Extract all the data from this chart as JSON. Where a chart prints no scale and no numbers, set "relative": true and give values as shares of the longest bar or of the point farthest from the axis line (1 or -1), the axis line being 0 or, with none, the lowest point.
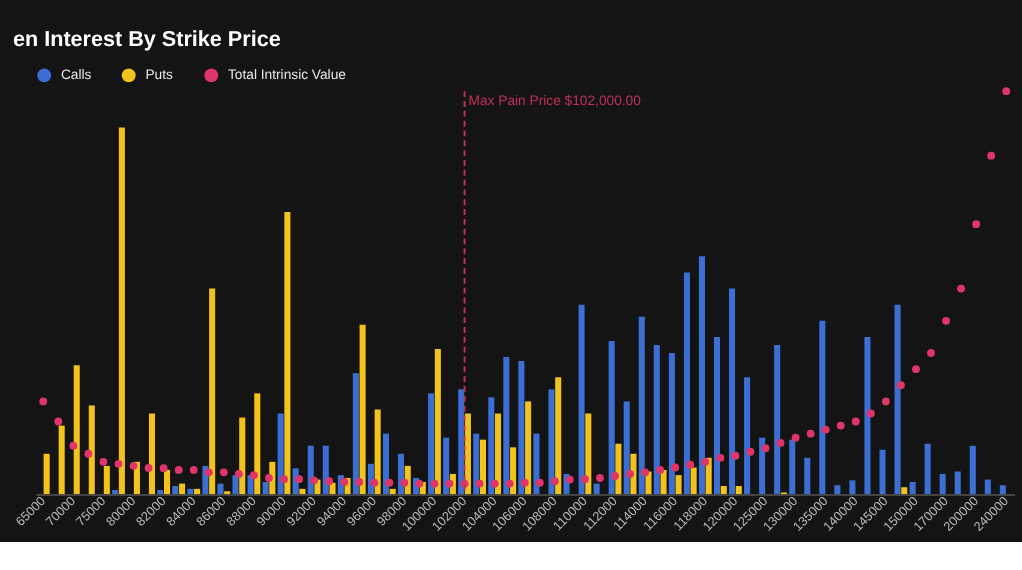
{
  "chart_data": {
    "type": "bar",
    "title": "en Interest By Strike Price",
    "relative": true,
    "categories": [
      "65000",
      null,
      "70000",
      null,
      "75000",
      null,
      "80000",
      null,
      "82000",
      null,
      "84000",
      null,
      "86000",
      null,
      "88000",
      null,
      "90000",
      null,
      "92000",
      null,
      "94000",
      null,
      "96000",
      null,
      "98000",
      null,
      "100000",
      null,
      "102000",
      null,
      "104000",
      null,
      "106000",
      null,
      "108000",
      null,
      "110000",
      null,
      "112000",
      null,
      "114000",
      null,
      "116000",
      null,
      "118000",
      null,
      "120000",
      null,
      "125000",
      null,
      "130000",
      null,
      "135000",
      null,
      "140000",
      null,
      "145000",
      null,
      "150000",
      null,
      "170000",
      null,
      "200000",
      null,
      "240000"
    ],
    "series": [
      {
        "name": "Calls",
        "color": "#3b6fd4",
        "values": [
          0,
          0,
          0,
          0,
          0,
          0.01,
          0,
          0,
          0.01,
          0.02,
          0.013,
          0.07,
          0.026,
          0.047,
          0.047,
          0.03,
          0.2,
          0.064,
          0.12,
          0.12,
          0.047,
          0.3,
          0.075,
          0.15,
          0.1,
          0.04,
          0.25,
          0.14,
          0.26,
          0.15,
          0.24,
          0.34,
          0.33,
          0.15,
          0.26,
          0.05,
          0.47,
          0.026,
          0.38,
          0.23,
          0.44,
          0.37,
          0.35,
          0.55,
          0.59,
          0.39,
          0.51,
          0.29,
          0.14,
          0.37,
          0.135,
          0.09,
          0.43,
          0.022,
          0.034,
          0.39,
          0.11,
          0.47,
          0.03,
          0.125,
          0.05,
          0.056,
          0.12,
          0.036,
          0.022
        ]
      },
      {
        "name": "Puts",
        "color": "#f2c31b",
        "values": [
          0.1,
          0.17,
          0.32,
          0.22,
          0.07,
          0.91,
          0.08,
          0.2,
          0.06,
          0.026,
          0.013,
          0.51,
          0.007,
          0.19,
          0.25,
          0.08,
          0.7,
          0.013,
          0.036,
          0.028,
          0.04,
          0.42,
          0.21,
          0.013,
          0.07,
          0.03,
          0.36,
          0.05,
          0.2,
          0.135,
          0.2,
          0.116,
          0.23,
          0,
          0.29,
          0,
          0.2,
          0,
          0.125,
          0.1,
          0.056,
          0.06,
          0.047,
          0.066,
          0.09,
          0.02,
          0.02,
          0,
          0,
          0.004,
          0,
          0,
          0,
          0,
          0,
          0,
          0,
          0.017,
          0,
          0,
          0,
          0,
          0,
          0,
          0
        ]
      },
      {
        "name": "Total Intrinsic Value",
        "type": "scatter",
        "color": "#e0356a",
        "values": [
          0.23,
          0.18,
          0.12,
          0.1,
          0.08,
          0.075,
          0.07,
          0.065,
          0.064,
          0.06,
          0.06,
          0.054,
          0.054,
          0.05,
          0.047,
          0.04,
          0.037,
          0.037,
          0.034,
          0.032,
          0.03,
          0.03,
          0.028,
          0.028,
          0.028,
          0.026,
          0.026,
          0.026,
          0.026,
          0.026,
          0.026,
          0.026,
          0.028,
          0.028,
          0.032,
          0.036,
          0.037,
          0.04,
          0.045,
          0.05,
          0.054,
          0.06,
          0.066,
          0.073,
          0.08,
          0.09,
          0.095,
          0.105,
          0.114,
          0.127,
          0.14,
          0.15,
          0.16,
          0.17,
          0.18,
          0.2,
          0.23,
          0.27,
          0.31,
          0.35,
          0.43,
          0.51,
          0.67,
          0.84,
          1.0
        ]
      }
    ],
    "ref_lines": [
      {
        "axis": "x",
        "value": "102000",
        "label": "Max Pain Price $102,000.00",
        "color": "#c0305a",
        "line_style": "dashed"
      }
    ],
    "legend": "top left",
    "marker": "circle"
  }
}
